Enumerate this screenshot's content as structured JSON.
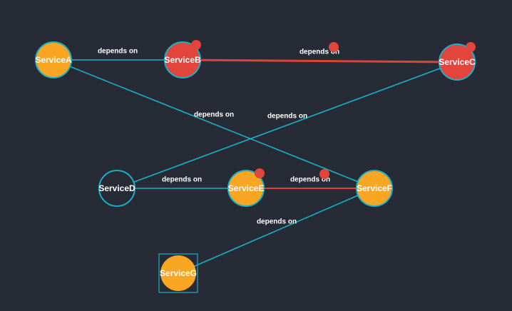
{
  "colors": {
    "background": "#272b35",
    "edge_normal": "#1bb0c8",
    "edge_alert": "#d9453a",
    "node_orange": "#f8a623",
    "node_red": "#e2453c",
    "node_empty": "#272b35",
    "node_border": "#1bb0c8",
    "alert_dot": "#e2453c",
    "label": "#ffffff"
  },
  "nodes": [
    {
      "id": "A",
      "label": "ServiceA",
      "state": "orange",
      "alert": false,
      "shape": "circle"
    },
    {
      "id": "B",
      "label": "ServiceB",
      "state": "red",
      "alert": true,
      "shape": "circle"
    },
    {
      "id": "C",
      "label": "ServiceC",
      "state": "red",
      "alert": true,
      "shape": "circle"
    },
    {
      "id": "D",
      "label": "ServiceD",
      "state": "empty",
      "alert": false,
      "shape": "circle"
    },
    {
      "id": "E",
      "label": "ServiceE",
      "state": "orange",
      "alert": true,
      "shape": "circle"
    },
    {
      "id": "F",
      "label": "ServiceF",
      "state": "orange",
      "alert": false,
      "shape": "circle"
    },
    {
      "id": "G",
      "label": "ServiceG",
      "state": "orange",
      "alert": false,
      "shape": "circle-boxed"
    }
  ],
  "edges": [
    {
      "from": "A",
      "to": "B",
      "label": "depends on",
      "state": "normal",
      "alert": false
    },
    {
      "from": "B",
      "to": "C",
      "label": "depends on",
      "state": "alert",
      "alert": true
    },
    {
      "from": "A",
      "to": "F",
      "label": "depends on",
      "state": "normal",
      "alert": false
    },
    {
      "from": "D",
      "to": "C",
      "label": "depends on",
      "state": "normal",
      "alert": false
    },
    {
      "from": "D",
      "to": "E",
      "label": "depends on",
      "state": "normal",
      "alert": false
    },
    {
      "from": "E",
      "to": "F",
      "label": "depends on",
      "state": "alert",
      "alert": true
    },
    {
      "from": "G",
      "to": "F",
      "label": "depends on",
      "state": "normal",
      "alert": false
    }
  ]
}
